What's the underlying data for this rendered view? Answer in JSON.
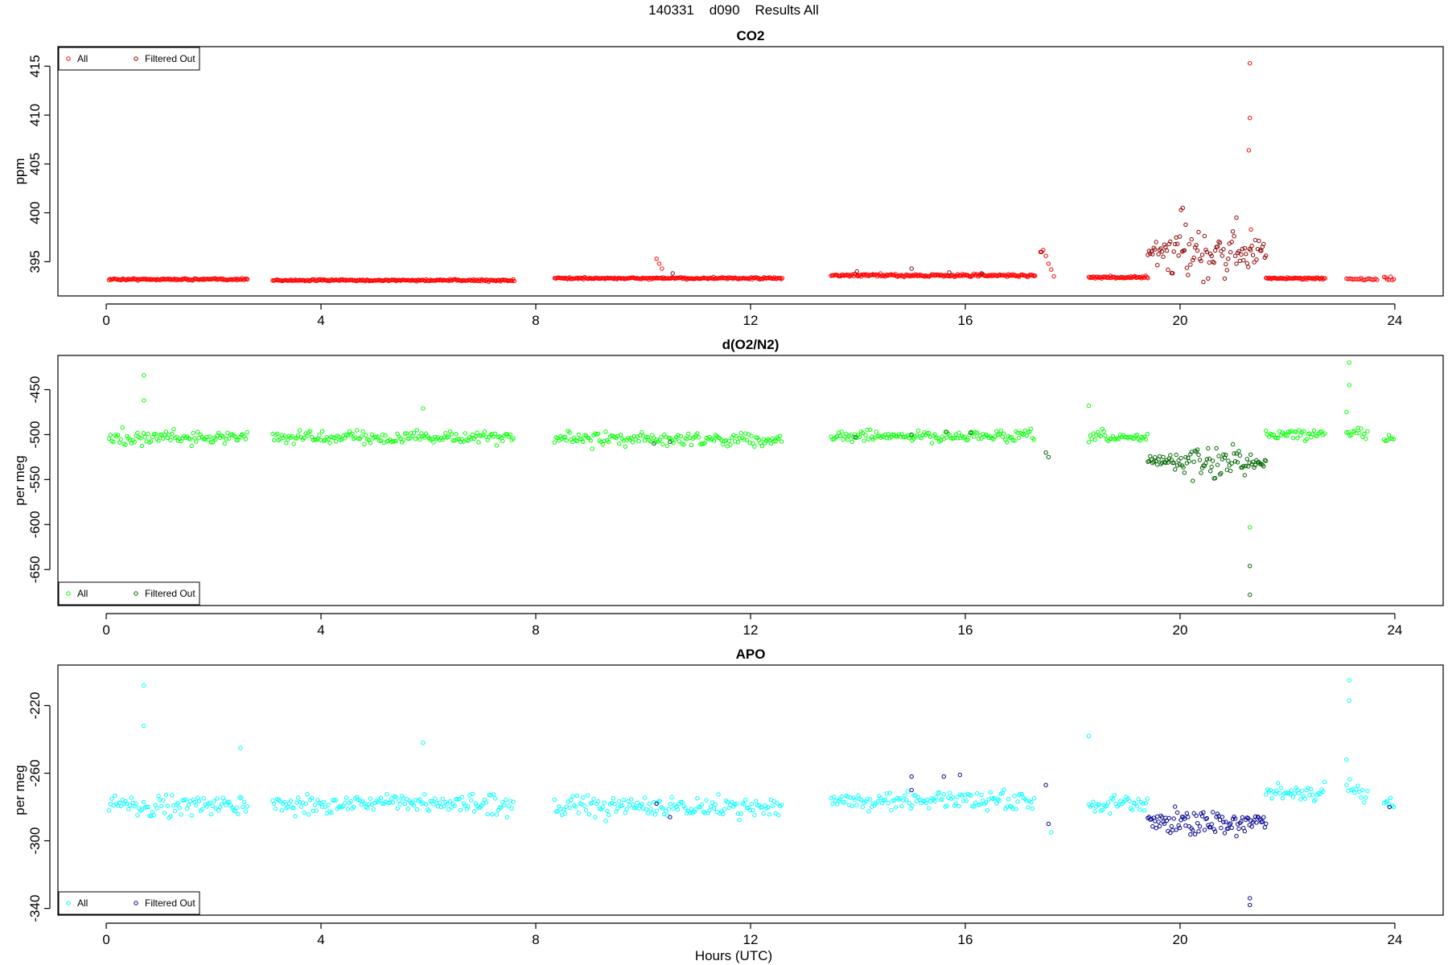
{
  "title": "140331    d090    Results All",
  "xlabel": "Hours (UTC)",
  "chart_data": [
    {
      "type": "scatter",
      "title": "CO2",
      "ylabel": "ppm",
      "xlim": [
        -0.9,
        24.9
      ],
      "ylim": [
        391.5,
        417.0
      ],
      "xticks": [
        0,
        4,
        8,
        12,
        16,
        20,
        24
      ],
      "xtick_labels": [
        "0",
        "4",
        "8",
        "12",
        "16",
        "20",
        "24"
      ],
      "yticks": [
        395,
        400,
        405,
        410,
        415
      ],
      "ytick_labels": [
        "395",
        "400",
        "405",
        "410",
        "415"
      ],
      "legend_position": "top-left",
      "colors": {
        "all": "#ff0000",
        "filtered": "#8b0000"
      },
      "series": [
        {
          "name": "All",
          "segments": [
            {
              "start": 0.05,
              "end": 2.65,
              "step": 0.02,
              "base": 393.2,
              "noise": 0.08
            },
            {
              "start": 3.1,
              "end": 7.6,
              "step": 0.02,
              "base": 393.1,
              "noise": 0.08
            },
            {
              "start": 8.35,
              "end": 12.6,
              "step": 0.02,
              "base": 393.3,
              "noise": 0.08
            },
            {
              "start": 13.5,
              "end": 17.3,
              "step": 0.02,
              "base": 393.6,
              "noise": 0.12
            },
            {
              "start": 18.3,
              "end": 19.4,
              "step": 0.02,
              "base": 393.4,
              "noise": 0.1
            },
            {
              "start": 21.6,
              "end": 22.7,
              "step": 0.02,
              "base": 393.3,
              "noise": 0.08
            },
            {
              "start": 23.1,
              "end": 23.7,
              "step": 0.03,
              "base": 393.2,
              "noise": 0.1
            },
            {
              "start": 23.8,
              "end": 24.0,
              "step": 0.03,
              "base": 393.3,
              "noise": 0.2
            }
          ],
          "points": [
            [
              10.25,
              395.3
            ],
            [
              10.3,
              394.8
            ],
            [
              10.35,
              394.3
            ],
            [
              17.4,
              396.0
            ],
            [
              17.45,
              396.2
            ],
            [
              17.5,
              395.6
            ],
            [
              17.55,
              394.8
            ],
            [
              17.6,
              394.2
            ],
            [
              17.65,
              393.5
            ],
            [
              21.3,
              415.3
            ],
            [
              21.3,
              409.7
            ],
            [
              21.28,
              406.4
            ],
            [
              21.32,
              398.3
            ]
          ]
        },
        {
          "name": "Filtered Out",
          "bursts": [
            {
              "start": 19.4,
              "end": 21.6,
              "step": 0.022,
              "base": 396.0,
              "noise": 2.0
            }
          ],
          "points": [
            [
              10.55,
              393.8
            ],
            [
              13.98,
              394.0
            ],
            [
              15.0,
              394.3
            ],
            [
              15.7,
              393.9
            ],
            [
              16.3,
              393.8
            ],
            [
              17.42,
              396.0
            ],
            [
              20.05,
              400.5
            ],
            [
              21.05,
              399.5
            ]
          ]
        }
      ]
    },
    {
      "type": "scatter",
      "title": "d(O2/N2)",
      "ylabel": "per meg",
      "xlim": [
        -0.9,
        24.9
      ],
      "ylim": [
        -690,
        -412
      ],
      "xticks": [
        0,
        4,
        8,
        12,
        16,
        20,
        24
      ],
      "xtick_labels": [
        "0",
        "4",
        "8",
        "12",
        "16",
        "20",
        "24"
      ],
      "yticks": [
        -650,
        -600,
        -550,
        -500,
        -450
      ],
      "ytick_labels": [
        "-650",
        "-600",
        "-550",
        "-500",
        "-450"
      ],
      "legend_position": "bottom-left",
      "colors": {
        "all": "#00ff00",
        "filtered": "#006400"
      },
      "series": [
        {
          "name": "All",
          "segments": [
            {
              "start": 0.05,
              "end": 2.65,
              "step": 0.028,
              "base": -503,
              "noise": 7
            },
            {
              "start": 3.1,
              "end": 7.6,
              "step": 0.028,
              "base": -503,
              "noise": 6
            },
            {
              "start": 8.35,
              "end": 12.6,
              "step": 0.028,
              "base": -505,
              "noise": 6
            },
            {
              "start": 13.5,
              "end": 17.3,
              "step": 0.028,
              "base": -502,
              "noise": 5
            },
            {
              "start": 18.3,
              "end": 19.4,
              "step": 0.028,
              "base": -503,
              "noise": 5
            },
            {
              "start": 21.6,
              "end": 22.7,
              "step": 0.028,
              "base": -500,
              "noise": 5
            },
            {
              "start": 23.1,
              "end": 23.5,
              "step": 0.03,
              "base": -497,
              "noise": 6
            },
            {
              "start": 23.8,
              "end": 24.0,
              "step": 0.03,
              "base": -503,
              "noise": 5
            }
          ],
          "points": [
            [
              0.7,
              -434
            ],
            [
              0.7,
              -462
            ],
            [
              5.9,
              -471
            ],
            [
              18.3,
              -468
            ],
            [
              23.15,
              -420
            ],
            [
              23.15,
              -445
            ],
            [
              23.1,
              -475
            ],
            [
              21.3,
              -603
            ]
          ]
        },
        {
          "name": "Filtered Out",
          "bursts": [
            {
              "start": 19.4,
              "end": 21.6,
              "step": 0.022,
              "base": -530,
              "noise": 11
            }
          ],
          "points": [
            [
              10.2,
              -510
            ],
            [
              10.5,
              -508
            ],
            [
              13.95,
              -503
            ],
            [
              15.0,
              -500
            ],
            [
              15.65,
              -497
            ],
            [
              16.1,
              -498
            ],
            [
              17.5,
              -520
            ],
            [
              17.55,
              -525
            ],
            [
              21.3,
              -646
            ],
            [
              21.3,
              -678
            ]
          ]
        }
      ]
    },
    {
      "type": "scatter",
      "title": "APO",
      "ylabel": "per meg",
      "xlim": [
        -0.9,
        24.9
      ],
      "ylim": [
        -344,
        -196
      ],
      "xticks": [
        0,
        4,
        8,
        12,
        16,
        20,
        24
      ],
      "xtick_labels": [
        "0",
        "4",
        "8",
        "12",
        "16",
        "20",
        "24"
      ],
      "yticks": [
        -340,
        -300,
        -260,
        -220
      ],
      "ytick_labels": [
        "-340",
        "-300",
        "-260",
        "-220"
      ],
      "legend_position": "bottom-left",
      "colors": {
        "all": "#00ffff",
        "filtered": "#00008b"
      },
      "series": [
        {
          "name": "All",
          "segments": [
            {
              "start": 0.05,
              "end": 2.65,
              "step": 0.028,
              "base": -279,
              "noise": 5
            },
            {
              "start": 3.1,
              "end": 7.6,
              "step": 0.028,
              "base": -278,
              "noise": 5
            },
            {
              "start": 8.35,
              "end": 12.6,
              "step": 0.028,
              "base": -280,
              "noise": 5
            },
            {
              "start": 13.5,
              "end": 17.3,
              "step": 0.028,
              "base": -276,
              "noise": 5
            },
            {
              "start": 18.3,
              "end": 19.4,
              "step": 0.028,
              "base": -279,
              "noise": 4
            },
            {
              "start": 21.6,
              "end": 22.7,
              "step": 0.028,
              "base": -272,
              "noise": 4
            },
            {
              "start": 23.1,
              "end": 23.5,
              "step": 0.03,
              "base": -270,
              "noise": 5
            },
            {
              "start": 23.8,
              "end": 24.0,
              "step": 0.03,
              "base": -278,
              "noise": 4
            }
          ],
          "points": [
            [
              0.7,
              -208
            ],
            [
              0.7,
              -232
            ],
            [
              2.5,
              -245
            ],
            [
              5.9,
              -242
            ],
            [
              18.3,
              -238
            ],
            [
              23.15,
              -205
            ],
            [
              23.15,
              -217
            ],
            [
              23.1,
              -252
            ],
            [
              17.6,
              -295
            ]
          ]
        },
        {
          "name": "Filtered Out",
          "bursts": [
            {
              "start": 19.4,
              "end": 21.6,
              "step": 0.022,
              "base": -289,
              "noise": 6
            }
          ],
          "points": [
            [
              10.25,
              -278
            ],
            [
              10.5,
              -286
            ],
            [
              15.0,
              -262
            ],
            [
              15.0,
              -270
            ],
            [
              15.6,
              -262
            ],
            [
              15.9,
              -261
            ],
            [
              17.5,
              -267
            ],
            [
              17.55,
              -290
            ],
            [
              21.3,
              -334
            ],
            [
              21.3,
              -338
            ],
            [
              23.9,
              -280
            ]
          ]
        }
      ]
    }
  ]
}
